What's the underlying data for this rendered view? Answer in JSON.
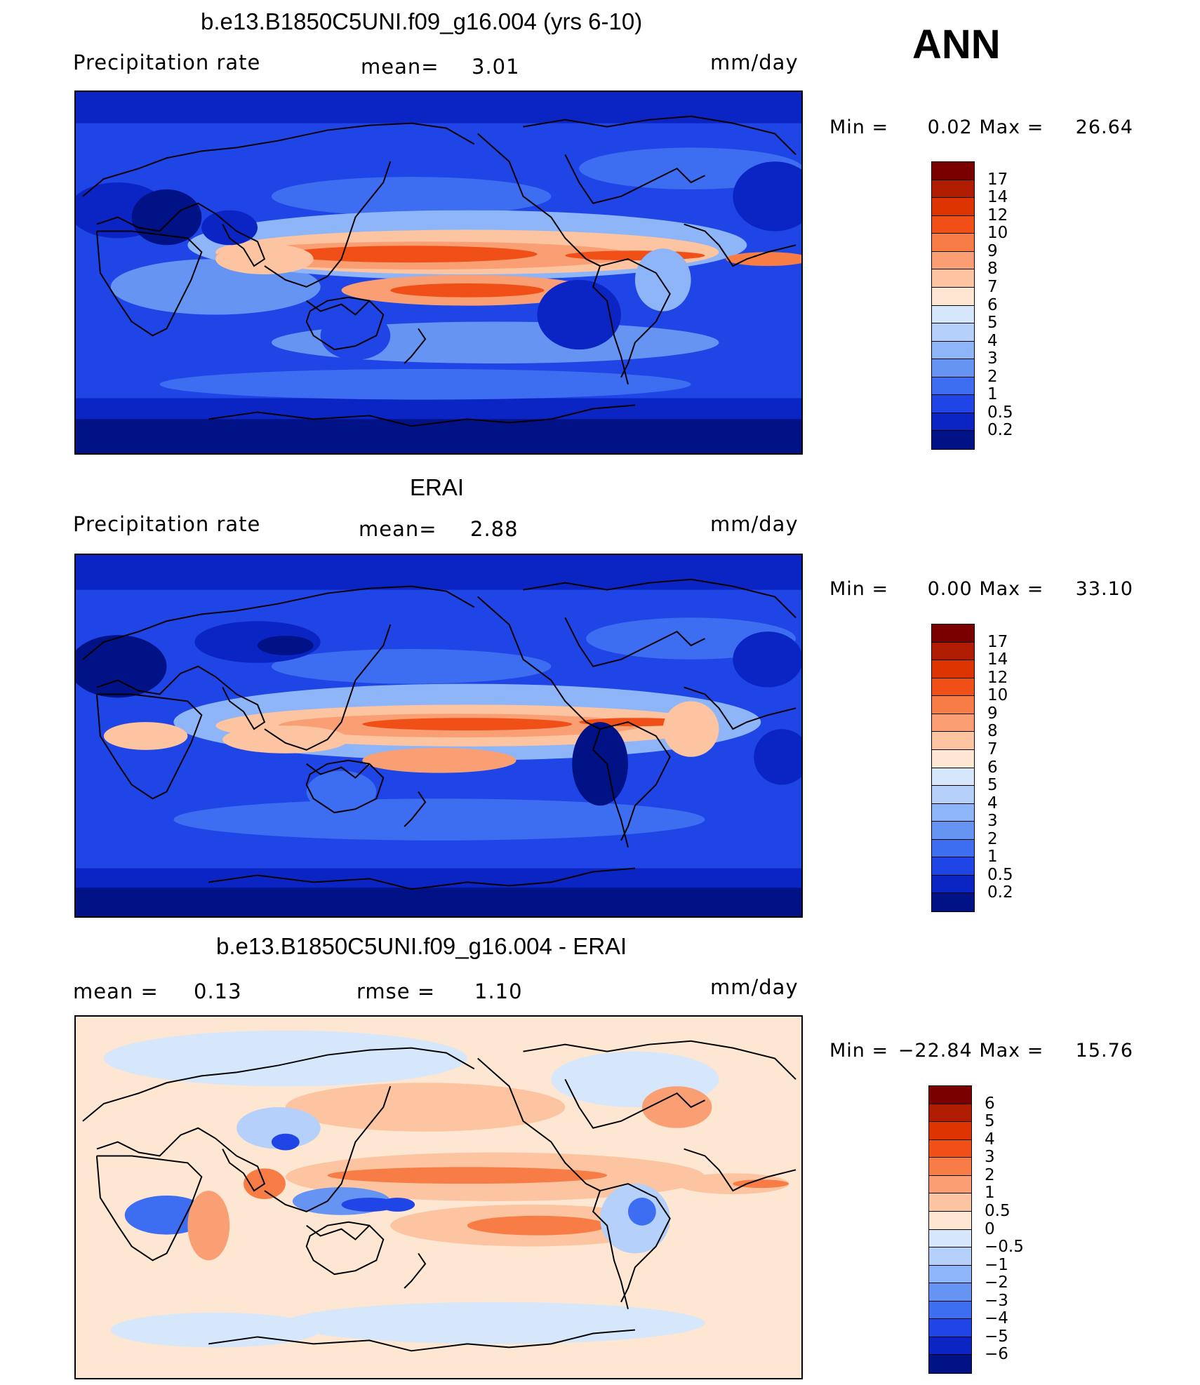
{
  "top_label": "ANN",
  "panels": [
    {
      "title": "b.e13.B1850C5UNI.f09_g16.004 (yrs 6-10)",
      "left_text": "Precipitation  rate",
      "mean_label": "mean=",
      "mean_value": "3.01",
      "units": "mm/day",
      "min_label": "Min  =",
      "min_value": "0.02",
      "max_label": "Max  =",
      "max_value": "26.64",
      "colorbar_labels": [
        "17",
        "14",
        "12",
        "10",
        "9",
        "8",
        "7",
        "6",
        "5",
        "4",
        "3",
        "2",
        "1",
        "0.5",
        "0.2"
      ],
      "colorbar_colors": [
        "#7a0000",
        "#b01c00",
        "#dc3300",
        "#f04f18",
        "#f77c45",
        "#fa9f74",
        "#fcc4a0",
        "#fde6d2",
        "#d6e7fb",
        "#b4d0fb",
        "#8eb5f8",
        "#6694f3",
        "#3d6df0",
        "#1f45e6",
        "#0b25c4",
        "#001285"
      ]
    },
    {
      "title": "ERAI",
      "left_text": "Precipitation  rate",
      "mean_label": "mean=",
      "mean_value": "2.88",
      "units": "mm/day",
      "min_label": "Min  =",
      "min_value": "0.00",
      "max_label": "Max  =",
      "max_value": "33.10",
      "colorbar_labels": [
        "17",
        "14",
        "12",
        "10",
        "9",
        "8",
        "7",
        "6",
        "5",
        "4",
        "3",
        "2",
        "1",
        "0.5",
        "0.2"
      ],
      "colorbar_colors": [
        "#7a0000",
        "#b01c00",
        "#dc3300",
        "#f04f18",
        "#f77c45",
        "#fa9f74",
        "#fcc4a0",
        "#fde6d2",
        "#d6e7fb",
        "#b4d0fb",
        "#8eb5f8",
        "#6694f3",
        "#3d6df0",
        "#1f45e6",
        "#0b25c4",
        "#001285"
      ]
    },
    {
      "title": "b.e13.B1850C5UNI.f09_g16.004 - ERAI",
      "left_text": "mean  =",
      "left_value": "0.13",
      "mean_label": "rmse  =",
      "mean_value": "1.10",
      "units": "mm/day",
      "min_label": "Min  =",
      "min_value": "−22.84",
      "max_label": "Max  =",
      "max_value": "15.76",
      "colorbar_labels": [
        "6",
        "5",
        "4",
        "3",
        "2",
        "1",
        "0.5",
        "0",
        "−0.5",
        "−1",
        "−2",
        "−3",
        "−4",
        "−5",
        "−6"
      ],
      "colorbar_colors": [
        "#7a0000",
        "#b01c00",
        "#dc3300",
        "#f04f18",
        "#f77c45",
        "#fa9f74",
        "#fcc4a0",
        "#fde6d2",
        "#d6e7fb",
        "#b4d0fb",
        "#8eb5f8",
        "#6694f3",
        "#3d6df0",
        "#1f45e6",
        "#0b25c4",
        "#001285"
      ]
    }
  ]
}
